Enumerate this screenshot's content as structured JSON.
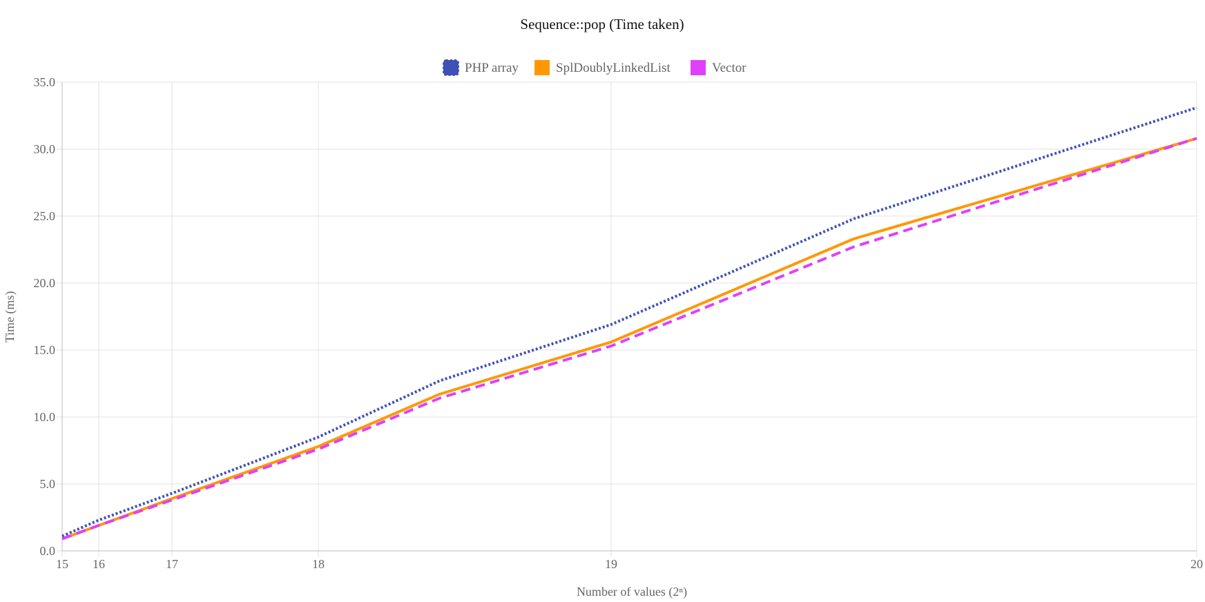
{
  "chart_data": {
    "type": "line",
    "title": "Sequence::pop (Time taken)",
    "xlabel": "Number of values (2ⁿ)",
    "ylabel": "Time (ms)",
    "xlim": [
      15,
      20
    ],
    "ylim": [
      0,
      35
    ],
    "x_ticks": [
      15,
      16,
      17,
      18,
      19,
      20
    ],
    "x_tick_labels": [
      "15",
      "16",
      "17",
      "18",
      "19",
      "20"
    ],
    "x_scale": "log2-of-n (linear in 2^n)",
    "y_ticks": [
      0,
      5,
      10,
      15,
      20,
      25,
      30,
      35
    ],
    "y_tick_labels": [
      "0.0",
      "5.0",
      "10.0",
      "15.0",
      "20.0",
      "25.0",
      "30.0",
      "35.0"
    ],
    "grid": true,
    "legend_position": "top-center",
    "series": [
      {
        "name": "PHP array",
        "color": "#3f51b5",
        "style": "dotted",
        "x": [
          15,
          16,
          17,
          18,
          18.5,
          19,
          19.5,
          20
        ],
        "values": [
          1.1,
          2.3,
          4.3,
          8.5,
          12.7,
          16.9,
          24.8,
          33.1
        ]
      },
      {
        "name": "SplDoublyLinkedList",
        "color": "#ff9800",
        "style": "solid",
        "x": [
          15,
          16,
          17,
          18,
          18.5,
          19,
          19.5,
          20
        ],
        "values": [
          0.9,
          1.9,
          3.9,
          7.8,
          11.7,
          15.6,
          23.3,
          30.8
        ]
      },
      {
        "name": "Vector",
        "color": "#e040fb",
        "style": "dashed",
        "x": [
          15,
          16,
          17,
          18,
          18.5,
          19,
          19.5,
          20
        ],
        "values": [
          0.9,
          1.9,
          3.8,
          7.6,
          11.4,
          15.3,
          22.7,
          30.8
        ]
      }
    ]
  }
}
